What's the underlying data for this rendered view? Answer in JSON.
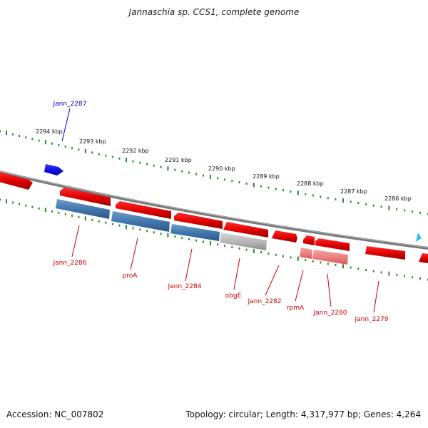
{
  "title": "Jannaschia sp. CCS1, complete genome",
  "accession": "Accession: NC_007802",
  "topology": "Topology: circular; Length: 4,317,977 bp; Genes: 4,264",
  "colors": {
    "backbone": "#808080",
    "tick": "#2a8a2a",
    "gene_forward": "#e60000",
    "gene_reverse": "#1010e0",
    "gene_highlight_blue": "#4a7fb5",
    "gene_highlight_gray": "#b8b8b8",
    "gene_faded": "#f08080",
    "label_red": "#cc0000",
    "label_blue": "#0000cc",
    "small_marker": "#33bbee"
  },
  "ticks": [
    {
      "label": "2294 kbp"
    },
    {
      "label": "2293 kbp"
    },
    {
      "label": "2292 kbp"
    },
    {
      "label": "2291 kbp"
    },
    {
      "label": "2290 kbp"
    },
    {
      "label": "2289 kbp"
    },
    {
      "label": "2288 kbp"
    },
    {
      "label": "2287 kbp"
    },
    {
      "label": "2286 kbp"
    }
  ],
  "gene_labels": [
    {
      "name": "Jann_2287"
    },
    {
      "name": "Jann_2286"
    },
    {
      "name": "proA"
    },
    {
      "name": "Jann_2284"
    },
    {
      "name": "obgE"
    },
    {
      "name": "Jann_2282"
    },
    {
      "name": "rpmA"
    },
    {
      "name": "Jann_2280"
    },
    {
      "name": "Jann_2279"
    }
  ]
}
